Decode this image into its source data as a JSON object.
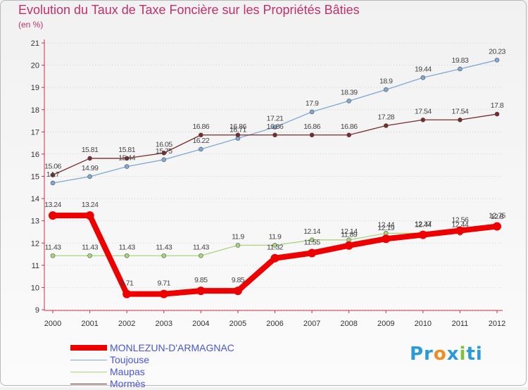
{
  "title": "Evolution du Taux de Taxe Foncière sur les Propriétés Bâties",
  "unit": "(en %)",
  "logo": "Proxiti",
  "chart_data": {
    "type": "line",
    "title": "Evolution du Taux de Taxe Foncière sur les Propriétés Bâties",
    "ylabel": "(en %)",
    "xlabel": "",
    "x": [
      "2000",
      "2001",
      "2002",
      "2003",
      "2004",
      "2005",
      "2006",
      "2007",
      "2008",
      "2009",
      "2010",
      "2011",
      "2012"
    ],
    "ylim": [
      9,
      21
    ],
    "yticks": [
      "9",
      "10",
      "11",
      "12",
      "13",
      "14",
      "15",
      "16",
      "17",
      "18",
      "19",
      "20",
      "21"
    ],
    "series": [
      {
        "name": "Toujouse",
        "color": "#7fa8d4",
        "values": [
          14.7,
          14.99,
          15.44,
          15.75,
          16.22,
          16.71,
          17.21,
          17.9,
          18.39,
          18.9,
          19.44,
          19.83,
          20.23
        ],
        "labels": [
          "14.7",
          "14.99",
          "15.44",
          "15.75",
          "16.22",
          "16.71",
          "17.21",
          "17.9",
          "18.39",
          "18.9",
          "19.44",
          "19.83",
          "20.23"
        ]
      },
      {
        "name": "Mormès",
        "color": "#7a2a2a",
        "values": [
          15.06,
          15.81,
          15.81,
          16.05,
          16.86,
          16.86,
          16.86,
          16.86,
          16.86,
          17.28,
          17.54,
          17.54,
          17.8
        ],
        "labels": [
          "15.06",
          "15.81",
          "15.81",
          "16.05",
          "16.86",
          "16.86",
          "16.86",
          "16.86",
          "16.86",
          "17.28",
          "17.54",
          "17.54",
          "17.8"
        ]
      },
      {
        "name": "Maupas",
        "color": "#a6d67a",
        "values": [
          11.43,
          11.43,
          11.43,
          11.43,
          11.43,
          11.9,
          11.9,
          12.14,
          12.14,
          12.44,
          12.44,
          12.44,
          12.8
        ],
        "labels": [
          "11.43",
          "11.43",
          "11.43",
          "11.43",
          "11.43",
          "11.9",
          "11.9",
          "12.14",
          "12.14",
          "12.44",
          "12.44",
          "12.44",
          "12.8"
        ]
      },
      {
        "name": "MONLEZUN-D'ARMAGNAC",
        "color": "#ee0000",
        "values": [
          13.24,
          13.24,
          9.71,
          9.71,
          9.85,
          9.85,
          11.32,
          11.55,
          11.89,
          12.19,
          12.37,
          12.56,
          12.75
        ],
        "labels": [
          "13.24",
          "13.24",
          "9.71",
          "9.71",
          "9.85",
          "9.85",
          "11.32",
          "11.55",
          "11.89",
          "12.19",
          "12.37",
          "12.56",
          "12.75"
        ]
      }
    ],
    "legend": [
      {
        "name": "MONLEZUN-D'ARMAGNAC",
        "color": "#ee0000",
        "thick": true
      },
      {
        "name": "Toujouse",
        "color": "#7fa8d4",
        "thick": false
      },
      {
        "name": "Maupas",
        "color": "#a6d67a",
        "thick": false
      },
      {
        "name": "Mormès",
        "color": "#7a2a2a",
        "thick": false
      }
    ]
  }
}
